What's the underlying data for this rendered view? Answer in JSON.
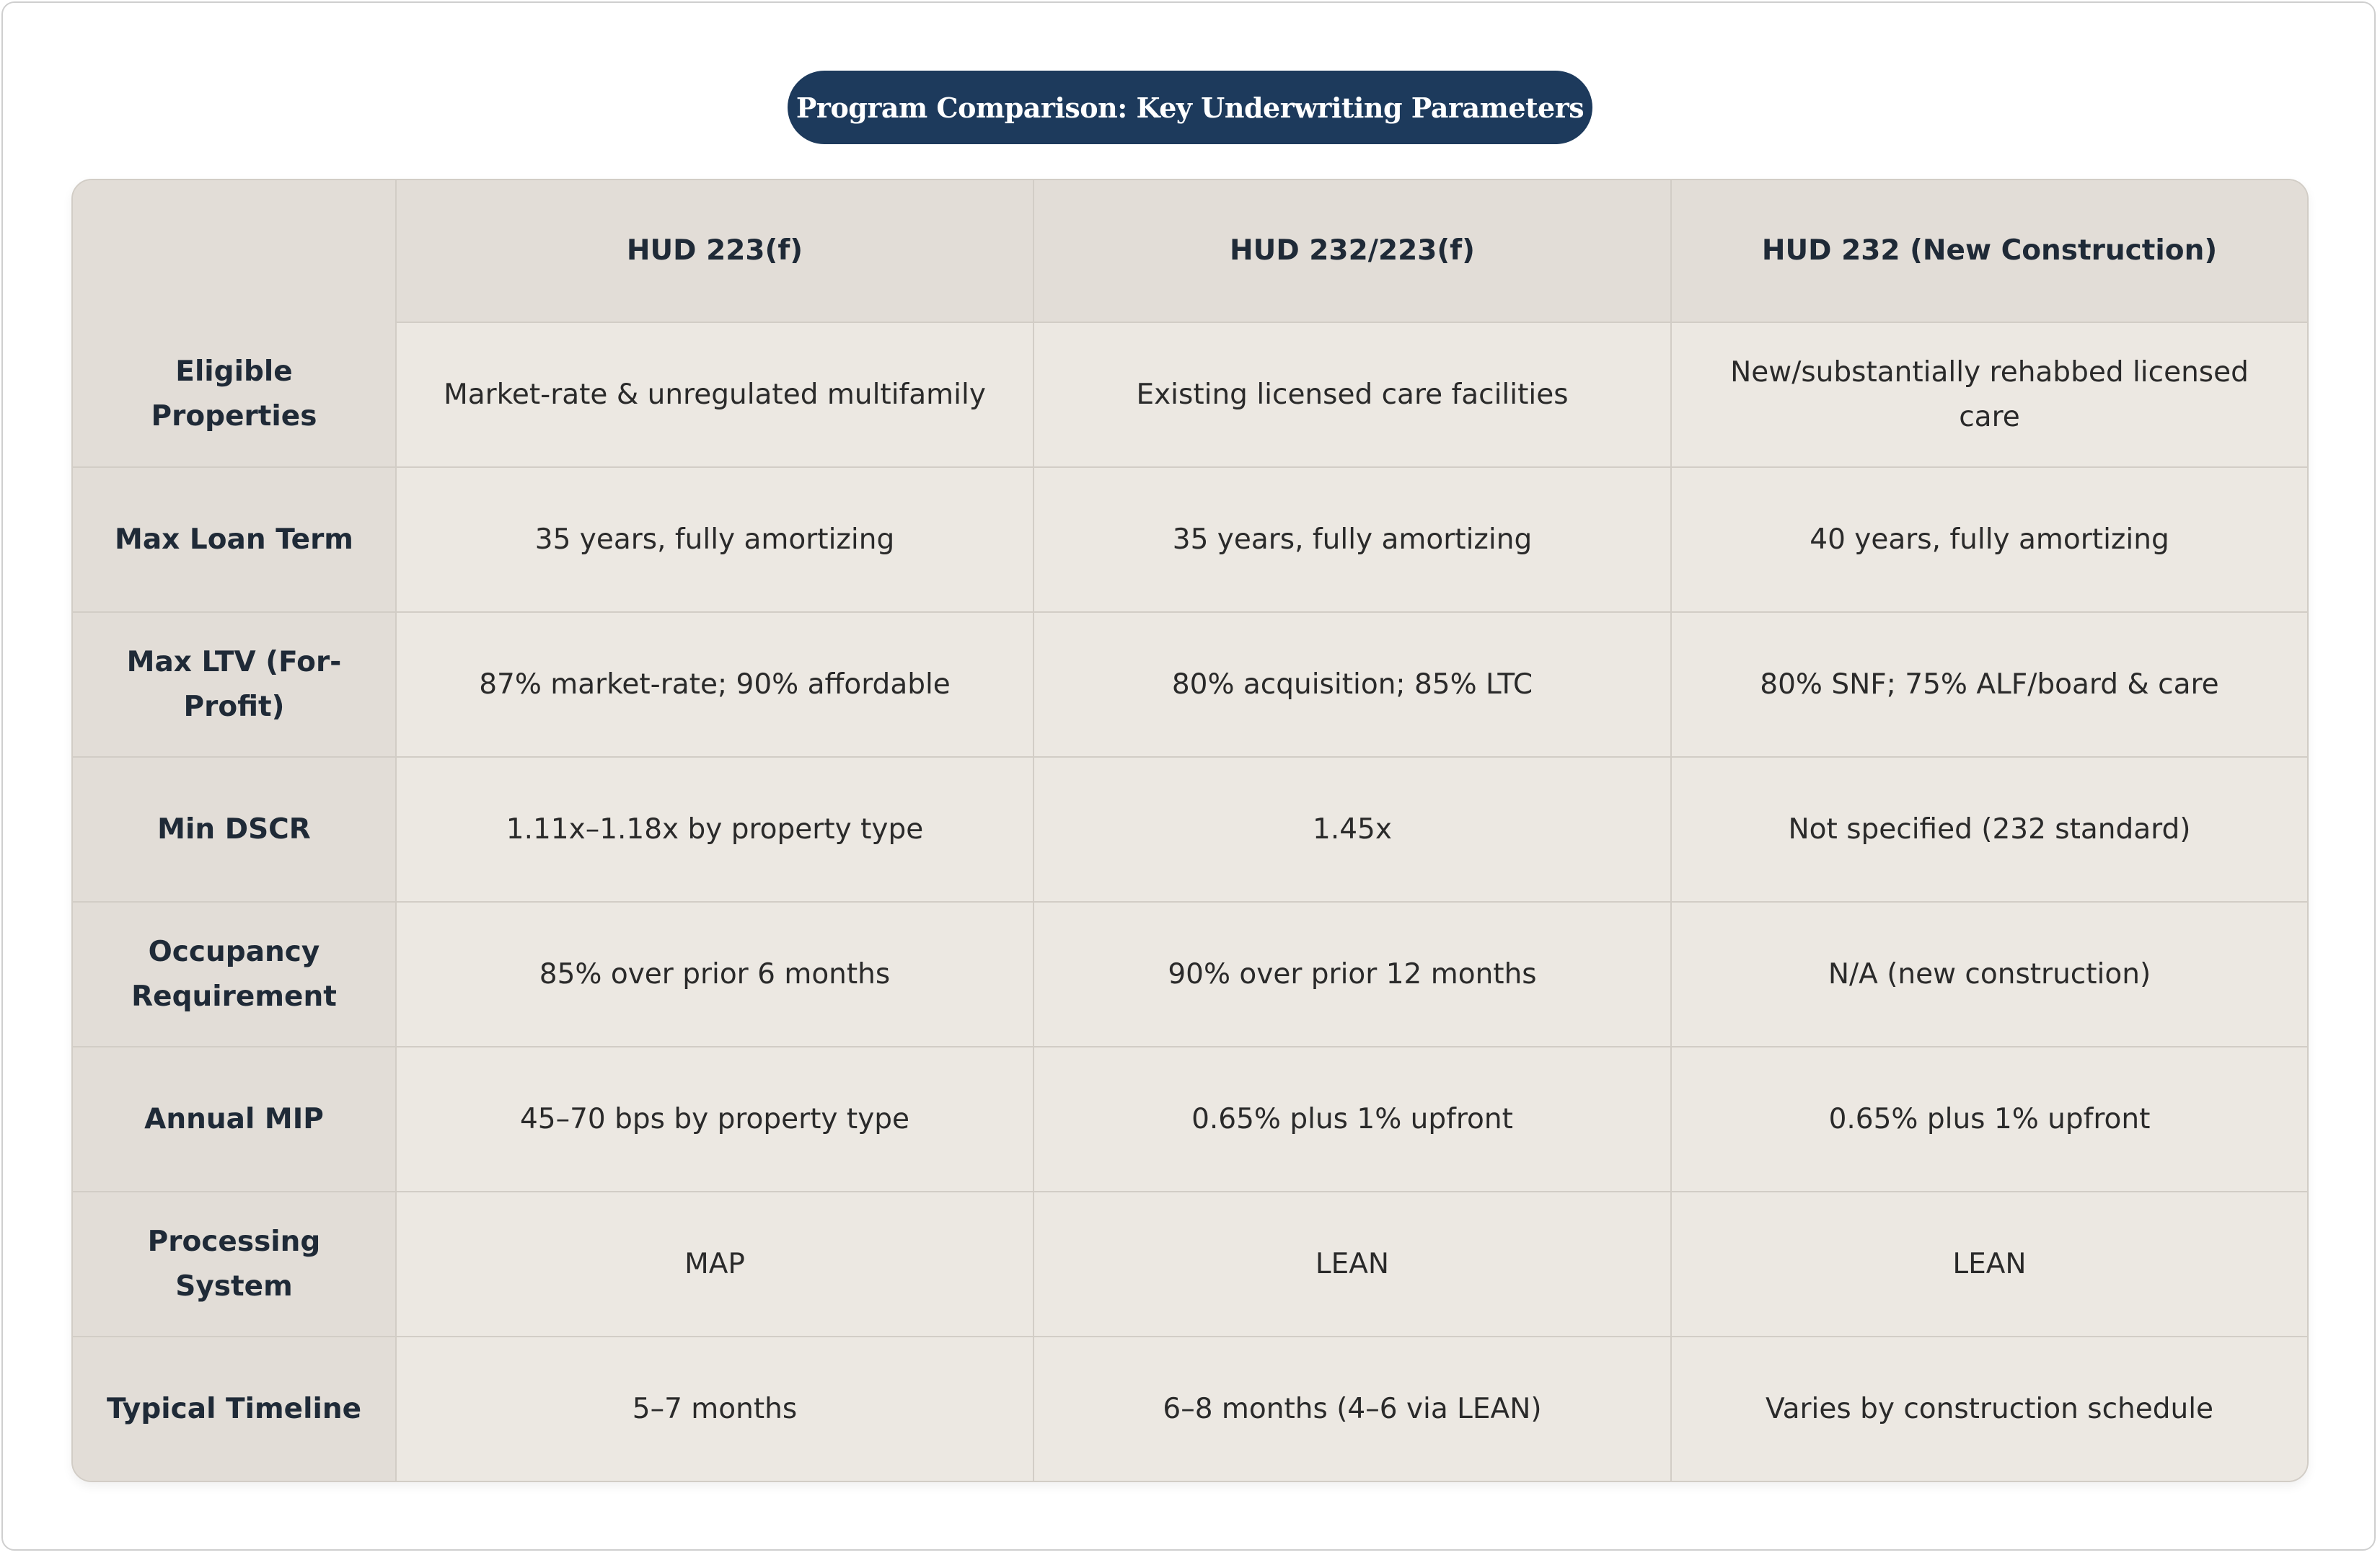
{
  "title": "Program Comparison: Key Underwriting Parameters",
  "colors": {
    "title_pill": "#1d3a5c",
    "header_bg": "#e2ddd7",
    "cell_bg": "#ece8e2",
    "border": "#d2cdc6",
    "text": "#1f2a37"
  },
  "table": {
    "columns": [
      "",
      "HUD 223(f)",
      "HUD 232/223(f)",
      "HUD 232 (New Construction)"
    ],
    "rows": [
      {
        "label": "Eligible Properties",
        "cells": [
          "Market-rate & unregulated multifamily",
          "Existing licensed care facilities",
          "New/substantially rehabbed licensed care"
        ]
      },
      {
        "label": "Max Loan Term",
        "cells": [
          "35 years, fully amortizing",
          "35 years, fully amortizing",
          "40 years, fully amortizing"
        ]
      },
      {
        "label": "Max LTV (For-Profit)",
        "cells": [
          "87% market-rate; 90% affordable",
          "80% acquisition; 85% LTC",
          "80% SNF; 75% ALF/board & care"
        ]
      },
      {
        "label": "Min DSCR",
        "cells": [
          "1.11x–1.18x by property type",
          "1.45x",
          "Not specified (232 standard)"
        ]
      },
      {
        "label": "Occupancy Requirement",
        "cells": [
          "85% over prior 6 months",
          "90% over prior 12 months",
          "N/A (new construction)"
        ]
      },
      {
        "label": "Annual MIP",
        "cells": [
          "45–70 bps by property type",
          "0.65% plus 1% upfront",
          "0.65% plus 1% upfront"
        ]
      },
      {
        "label": "Processing System",
        "cells": [
          "MAP",
          "LEAN",
          "LEAN"
        ]
      },
      {
        "label": "Typical Timeline",
        "cells": [
          "5–7 months",
          "6–8 months (4–6 via LEAN)",
          "Varies by construction schedule"
        ]
      }
    ]
  }
}
